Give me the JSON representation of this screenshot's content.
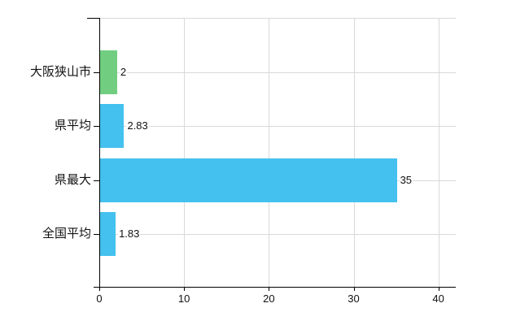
{
  "chart_data": {
    "type": "bar",
    "orientation": "horizontal",
    "title": "",
    "xlabel": "",
    "ylabel": "",
    "categories": [
      "大阪狭山市",
      "県平均",
      "県最大",
      "全国平均"
    ],
    "values": [
      2,
      2.83,
      35,
      1.83
    ],
    "value_labels": [
      "2",
      "2.83",
      "35",
      "1.83"
    ],
    "bar_colors": [
      "#71CE80",
      "#44C1EE",
      "#44C1EE",
      "#44C1EE"
    ],
    "xlim": [
      0,
      42
    ],
    "xticks": [
      0,
      10,
      20,
      30,
      40
    ],
    "xtick_labels": [
      "0",
      "10",
      "20",
      "30",
      "40"
    ],
    "grid": true,
    "legend": false
  },
  "colors": {
    "background": "#ffffff",
    "grid": "#d9d9d9",
    "axis": "#000000",
    "text": "#111111",
    "highlight_bar": "#71CE80",
    "default_bar": "#44C1EE"
  }
}
